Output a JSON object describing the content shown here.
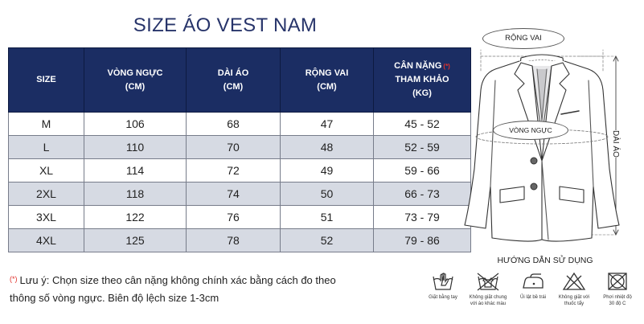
{
  "title": "SIZE ÁO VEST NAM",
  "table": {
    "headers": [
      {
        "line1": "SIZE",
        "line2": "",
        "line3": ""
      },
      {
        "line1": "VÒNG NGỰC",
        "line2": "(CM)",
        "line3": ""
      },
      {
        "line1": "DÀI ÁO",
        "line2": "(CM)",
        "line3": ""
      },
      {
        "line1": "RỘNG VAI",
        "line2": "(CM)",
        "line3": ""
      },
      {
        "line1": "CÂN NẶNG",
        "line1_mark": "(*)",
        "line2": "THAM KHẢO",
        "line3": "(KG)"
      }
    ],
    "rows": [
      [
        "M",
        "106",
        "68",
        "47",
        "45 - 52"
      ],
      [
        "L",
        "110",
        "70",
        "48",
        "52 - 59"
      ],
      [
        "XL",
        "114",
        "72",
        "49",
        "59 - 66"
      ],
      [
        "2XL",
        "118",
        "74",
        "50",
        "66 - 73"
      ],
      [
        "3XL",
        "122",
        "76",
        "51",
        "73 - 79"
      ],
      [
        "4XL",
        "125",
        "78",
        "52",
        "79 - 86"
      ]
    ]
  },
  "note": {
    "marker": "(*)",
    "line1": "Lưu ý: Chọn size theo cân nặng không chính xác bằng cách đo theo",
    "line2": "thông số vòng ngực. Biên độ lệch size 1-3cm"
  },
  "diagram": {
    "shoulder_label": "RỘNG VAI",
    "chest_label": "VÒNG NGỰC",
    "length_label": "DÀI ÁO"
  },
  "care": {
    "title": "HƯỚNG DẪN SỬ DỤNG",
    "items": [
      {
        "icon": "hand-wash-icon",
        "line1": "Giặt bằng tay",
        "line2": ""
      },
      {
        "icon": "no-mix-wash-icon",
        "line1": "Không giặt chung",
        "line2": "với áo khác màu"
      },
      {
        "icon": "iron-icon",
        "line1": "Ủi lật bề trái",
        "line2": ""
      },
      {
        "icon": "no-bleach-icon",
        "line1": "Không giặt với",
        "line2": "thuốc tẩy"
      },
      {
        "icon": "dry-temp-icon",
        "line1": "Phơi nhiệt độ",
        "line2": "30 độ C"
      }
    ]
  },
  "colors": {
    "header_bg": "#1b2d63",
    "title": "#27346a",
    "stripe": "#d6dae3",
    "accent": "#e0302a"
  }
}
